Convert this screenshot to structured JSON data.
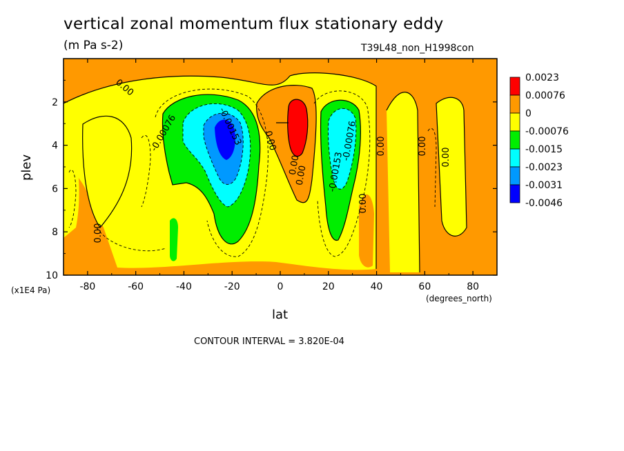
{
  "chart_data": {
    "type": "heatmap",
    "title": "vertical zonal momentum flux stationary eddy",
    "units": "(m Pa s-2)",
    "run_label": "T39L48_non_H1998con",
    "xlabel": "lat",
    "x_units": "(degrees_north)",
    "ylabel": "plev",
    "y_scale_note": "(x1E4 Pa)",
    "contour_interval_text": "CONTOUR INTERVAL = 3.820E-04",
    "xlim": [
      -90,
      90
    ],
    "ylim": [
      10,
      0
    ],
    "x_ticks": [
      "-80",
      "-60",
      "-40",
      "-20",
      "0",
      "20",
      "40",
      "60",
      "80"
    ],
    "y_ticks": [
      "2",
      "4",
      "6",
      "8",
      "10"
    ],
    "legend": {
      "placement": "right",
      "levels": [
        "0.0023",
        "0.00076",
        "0",
        "-0.00076",
        "-0.0015",
        "-0.0023",
        "-0.0031",
        "-0.0046"
      ],
      "colors": [
        "#ff0000",
        "#ff9900",
        "#ffff00",
        "#00ee00",
        "#00ffff",
        "#0099ff",
        "#0000ff"
      ]
    },
    "contour_labels": [
      "0.00",
      "-0.00076",
      "-0.00153",
      "0.00",
      "0.00",
      "-0.00153",
      "-0.00076",
      "0.00",
      "0.00",
      "0.00",
      "0.00",
      "0.00",
      "0.00"
    ]
  }
}
